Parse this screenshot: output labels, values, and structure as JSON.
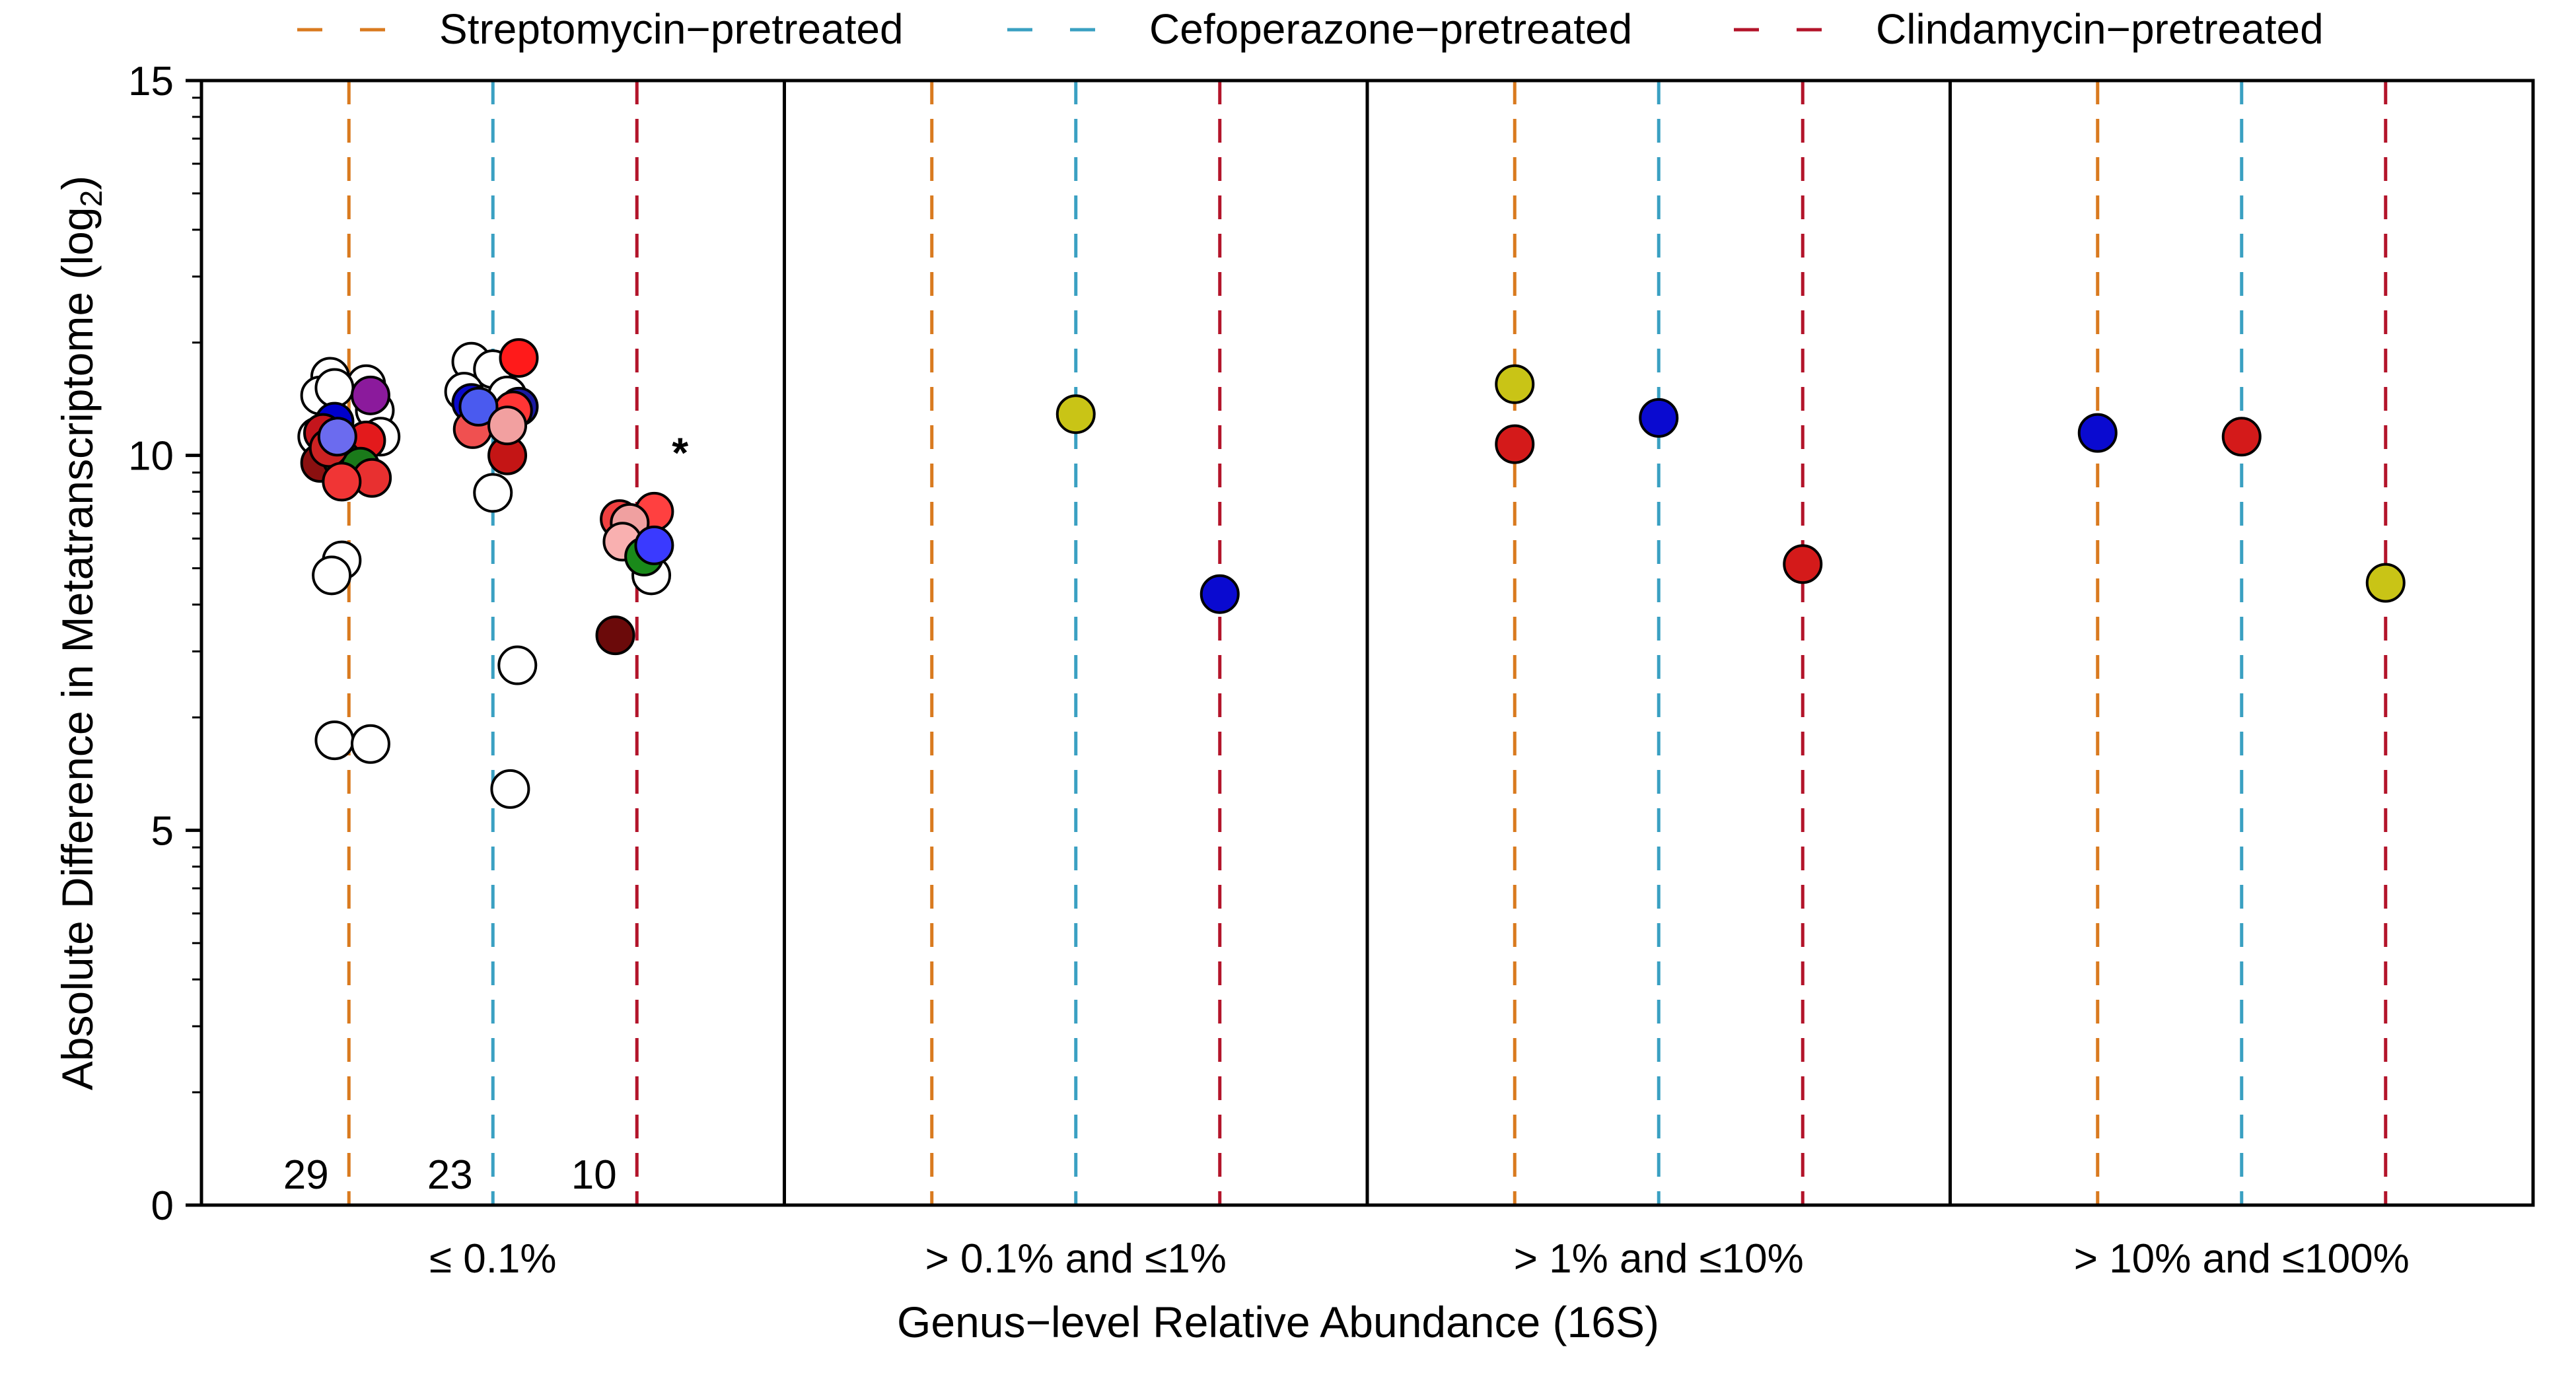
{
  "chart_data": {
    "type": "scatter",
    "title": "",
    "xlabel": "Genus−level Relative Abundance (16S)",
    "ylabel_main": "Absolute Difference in Metatranscriptome (log",
    "ylabel_sub": "2",
    "ylabel_close": ")",
    "ylim": [
      0,
      15
    ],
    "yticks": [
      "0",
      "5",
      "10",
      "15"
    ],
    "legend_position": "top",
    "categories": [
      "≤ 0.1%",
      "> 0.1% and ≤1%",
      "> 1% and ≤10%",
      "> 10% and ≤100%"
    ],
    "series": [
      {
        "name": "Streptomycin−pretreated",
        "color": "#d97a1f"
      },
      {
        "name": "Cefoperazone−pretreated",
        "color": "#3aa0c2"
      },
      {
        "name": "Clindamycin−pretreated",
        "color": "#b3142a"
      }
    ],
    "counts": [
      {
        "category": 0,
        "series": 0,
        "label": "29"
      },
      {
        "category": 0,
        "series": 1,
        "label": "23"
      },
      {
        "category": 0,
        "series": 2,
        "label": "10"
      }
    ],
    "annotations": [
      {
        "category": 0,
        "series": 2,
        "offset": 0.3,
        "y": 10.0,
        "text": "*"
      }
    ],
    "points": [
      {
        "category": 0,
        "series": 0,
        "offset": -0.13,
        "y": 11.05,
        "color": "#ffffff"
      },
      {
        "category": 0,
        "series": 0,
        "offset": 0.12,
        "y": 10.95,
        "color": "#ffffff"
      },
      {
        "category": 0,
        "series": 0,
        "offset": -0.2,
        "y": 10.8,
        "color": "#ffffff"
      },
      {
        "category": 0,
        "series": 0,
        "offset": -0.1,
        "y": 10.9,
        "color": "#ffffff"
      },
      {
        "category": 0,
        "series": 0,
        "offset": 0.18,
        "y": 10.6,
        "color": "#ffffff"
      },
      {
        "category": 0,
        "series": 0,
        "offset": -0.22,
        "y": 10.25,
        "color": "#ffffff"
      },
      {
        "category": 0,
        "series": 0,
        "offset": 0.22,
        "y": 10.25,
        "color": "#ffffff"
      },
      {
        "category": 0,
        "series": 0,
        "offset": 0.05,
        "y": 9.8,
        "color": "#ffffff"
      },
      {
        "category": 0,
        "series": 0,
        "offset": -0.05,
        "y": 8.6,
        "color": "#ffffff"
      },
      {
        "category": 0,
        "series": 0,
        "offset": -0.12,
        "y": 8.4,
        "color": "#ffffff"
      },
      {
        "category": 0,
        "series": 0,
        "offset": -0.1,
        "y": 6.2,
        "color": "#ffffff"
      },
      {
        "category": 0,
        "series": 0,
        "offset": 0.15,
        "y": 6.15,
        "color": "#ffffff"
      },
      {
        "category": 0,
        "series": 0,
        "offset": -0.1,
        "y": 10.45,
        "color": "#0000cc"
      },
      {
        "category": 0,
        "series": 0,
        "offset": 0.15,
        "y": 10.8,
        "color": "#8b1a9c"
      },
      {
        "category": 0,
        "series": 0,
        "offset": -0.18,
        "y": 10.3,
        "color": "#c4151c"
      },
      {
        "category": 0,
        "series": 0,
        "offset": 0.12,
        "y": 10.2,
        "color": "#e31a1c"
      },
      {
        "category": 0,
        "series": 0,
        "offset": -0.2,
        "y": 9.9,
        "color": "#8b1010"
      },
      {
        "category": 0,
        "series": 0,
        "offset": -0.05,
        "y": 9.95,
        "color": "#1a8a1a"
      },
      {
        "category": 0,
        "series": 0,
        "offset": 0.08,
        "y": 9.85,
        "color": "#1a7a1a"
      },
      {
        "category": 0,
        "series": 0,
        "offset": -0.14,
        "y": 10.1,
        "color": "#cc2222"
      },
      {
        "category": 0,
        "series": 0,
        "offset": -0.08,
        "y": 10.25,
        "color": "#6b6bef"
      },
      {
        "category": 0,
        "series": 0,
        "offset": 0.16,
        "y": 9.7,
        "color": "#e83030"
      },
      {
        "category": 0,
        "series": 0,
        "offset": -0.05,
        "y": 9.65,
        "color": "#f03535"
      },
      {
        "category": 0,
        "series": 1,
        "offset": -0.15,
        "y": 11.25,
        "color": "#ffffff"
      },
      {
        "category": 0,
        "series": 1,
        "offset": 0.0,
        "y": 11.15,
        "color": "#ffffff"
      },
      {
        "category": 0,
        "series": 1,
        "offset": -0.2,
        "y": 10.85,
        "color": "#ffffff"
      },
      {
        "category": 0,
        "series": 1,
        "offset": 0.1,
        "y": 10.8,
        "color": "#ffffff"
      },
      {
        "category": 0,
        "series": 1,
        "offset": 0.0,
        "y": 9.5,
        "color": "#ffffff"
      },
      {
        "category": 0,
        "series": 1,
        "offset": 0.17,
        "y": 7.2,
        "color": "#ffffff"
      },
      {
        "category": 0,
        "series": 1,
        "offset": 0.12,
        "y": 5.55,
        "color": "#ffffff"
      },
      {
        "category": 0,
        "series": 1,
        "offset": 0.18,
        "y": 11.3,
        "color": "#ff1a1a"
      },
      {
        "category": 0,
        "series": 1,
        "offset": -0.15,
        "y": 10.7,
        "color": "#0a0acc"
      },
      {
        "category": 0,
        "series": 1,
        "offset": 0.18,
        "y": 10.65,
        "color": "#1a1aa0"
      },
      {
        "category": 0,
        "series": 1,
        "offset": -0.14,
        "y": 10.35,
        "color": "#f05050"
      },
      {
        "category": 0,
        "series": 1,
        "offset": 0.14,
        "y": 10.6,
        "color": "#ff3535"
      },
      {
        "category": 0,
        "series": 1,
        "offset": 0.1,
        "y": 10.0,
        "color": "#c41515"
      },
      {
        "category": 0,
        "series": 1,
        "offset": -0.1,
        "y": 10.65,
        "color": "#4a5aef"
      },
      {
        "category": 0,
        "series": 1,
        "offset": 0.1,
        "y": 10.4,
        "color": "#f2a0a0"
      },
      {
        "category": 0,
        "series": 2,
        "offset": -0.12,
        "y": 9.15,
        "color": "#f04040"
      },
      {
        "category": 0,
        "series": 2,
        "offset": 0.12,
        "y": 9.25,
        "color": "#ff4040"
      },
      {
        "category": 0,
        "series": 2,
        "offset": -0.05,
        "y": 9.1,
        "color": "#f0a0a0"
      },
      {
        "category": 0,
        "series": 2,
        "offset": 0.1,
        "y": 8.4,
        "color": "#ffffff"
      },
      {
        "category": 0,
        "series": 2,
        "offset": -0.1,
        "y": 8.85,
        "color": "#f9b0b0"
      },
      {
        "category": 0,
        "series": 2,
        "offset": 0.05,
        "y": 8.65,
        "color": "#1a8a1a"
      },
      {
        "category": 0,
        "series": 2,
        "offset": 0.12,
        "y": 8.8,
        "color": "#3a3aff"
      },
      {
        "category": 0,
        "series": 2,
        "offset": -0.15,
        "y": 7.6,
        "color": "#6b0a0a"
      },
      {
        "category": 1,
        "series": 1,
        "offset": 0.0,
        "y": 10.55,
        "color": "#c9c416"
      },
      {
        "category": 1,
        "series": 2,
        "offset": 0.0,
        "y": 8.15,
        "color": "#0a0ad0"
      },
      {
        "category": 2,
        "series": 0,
        "offset": 0.0,
        "y": 10.95,
        "color": "#c9c416"
      },
      {
        "category": 2,
        "series": 0,
        "offset": 0.0,
        "y": 10.15,
        "color": "#d41a1a"
      },
      {
        "category": 2,
        "series": 1,
        "offset": 0.0,
        "y": 10.5,
        "color": "#0a0ad0"
      },
      {
        "category": 2,
        "series": 2,
        "offset": 0.0,
        "y": 8.55,
        "color": "#d41a1a"
      },
      {
        "category": 3,
        "series": 0,
        "offset": 0.0,
        "y": 10.3,
        "color": "#0a0ad0"
      },
      {
        "category": 3,
        "series": 1,
        "offset": 0.0,
        "y": 10.25,
        "color": "#d41a1a"
      },
      {
        "category": 3,
        "series": 2,
        "offset": 0.0,
        "y": 8.3,
        "color": "#c9c416"
      }
    ]
  }
}
